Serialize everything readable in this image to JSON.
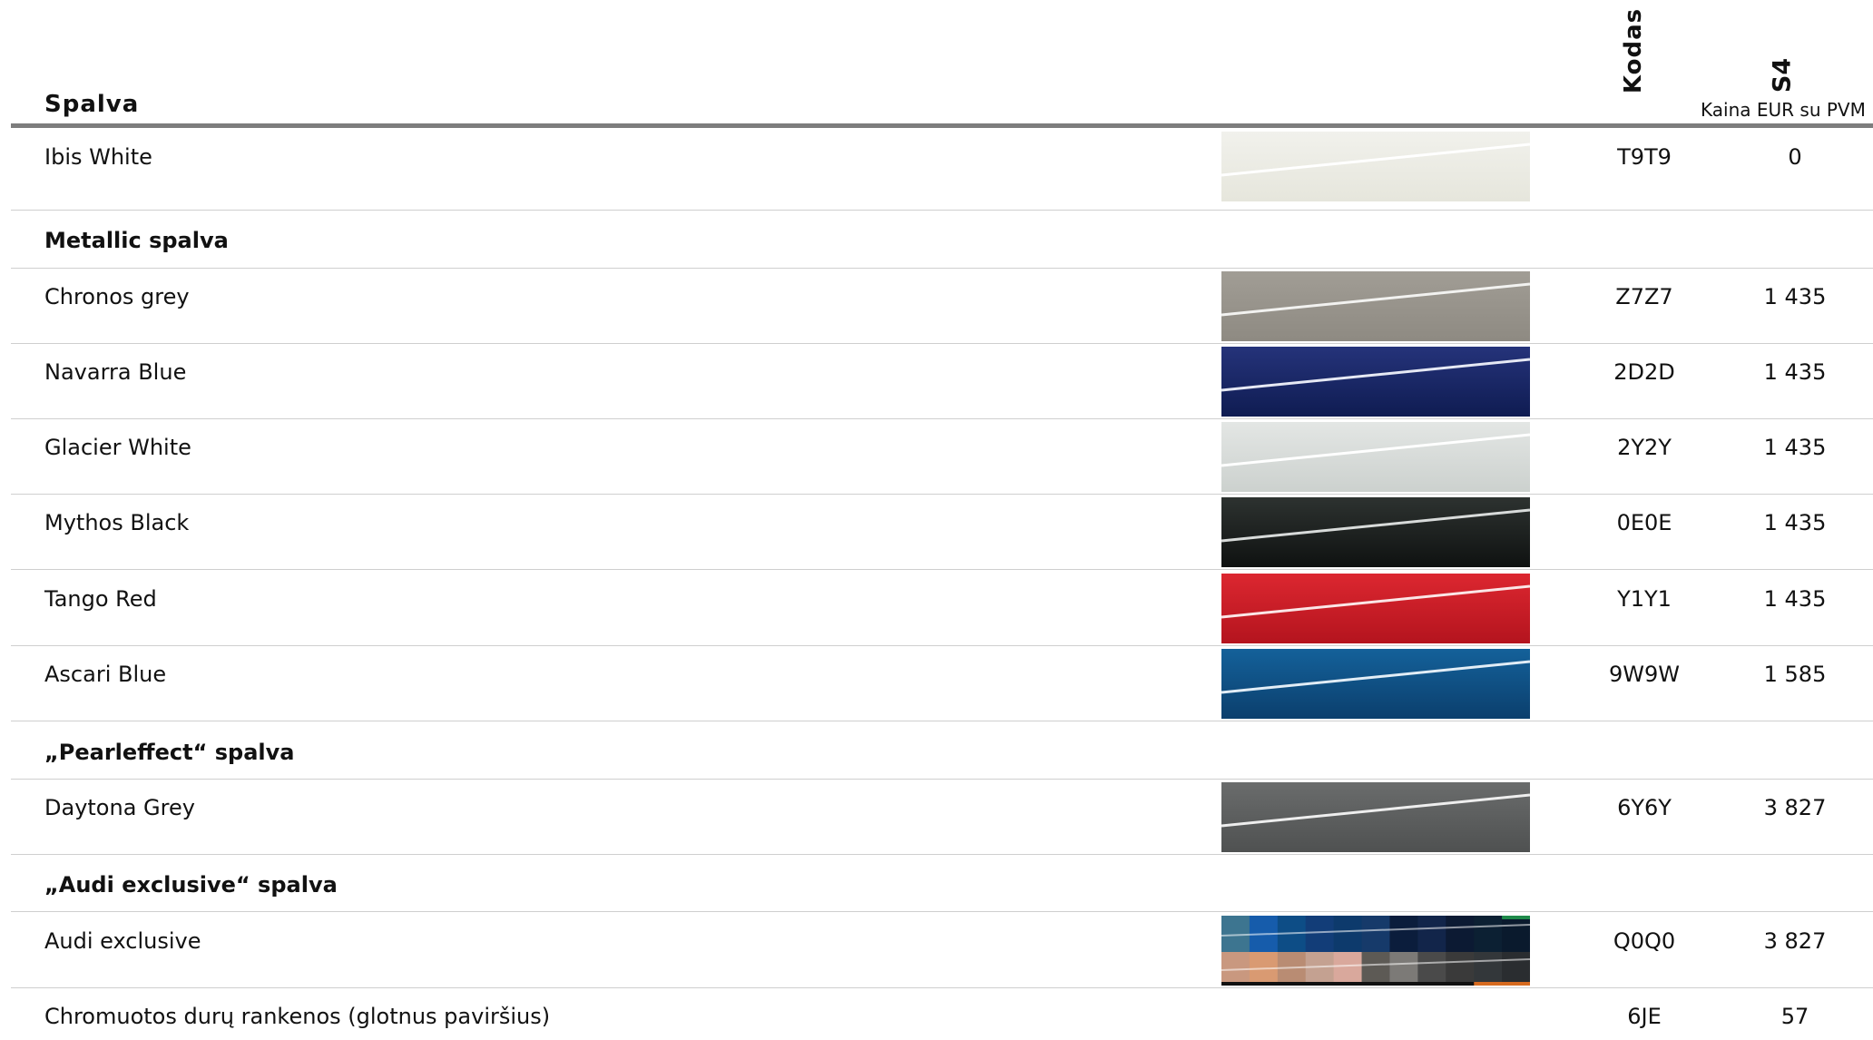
{
  "header": {
    "title": "Spalva",
    "code_col": "Kodas",
    "model_col": "S4",
    "price_caption": "Kaina EUR su PVM"
  },
  "rows": [
    {
      "kind": "item",
      "name": "Ibis White",
      "code": "T9T9",
      "price": "0",
      "swatch": {
        "top": "#f1f1ec",
        "bottom": "#e6e6dc",
        "line": "#ffffff"
      }
    },
    {
      "kind": "group",
      "name": "Metallic spalva"
    },
    {
      "kind": "item",
      "name": "Chronos grey",
      "code": "Z7Z7",
      "price": "1 435",
      "swatch": {
        "top": "#a19d95",
        "bottom": "#8e8a82",
        "line": "#f2f2f0"
      }
    },
    {
      "kind": "item",
      "name": "Navarra Blue",
      "code": "2D2D",
      "price": "1 435",
      "swatch": {
        "top": "#25337a",
        "bottom": "#0f1c52",
        "line": "#e6e9f4"
      }
    },
    {
      "kind": "item",
      "name": "Glacier White",
      "code": "2Y2Y",
      "price": "1 435",
      "swatch": {
        "top": "#e3e6e4",
        "bottom": "#ccd1ce",
        "line": "#ffffff"
      }
    },
    {
      "kind": "item",
      "name": "Mythos Black",
      "code": "0E0E",
      "price": "1 435",
      "swatch": {
        "top": "#2d3230",
        "bottom": "#0f1211",
        "line": "#d8dbda"
      }
    },
    {
      "kind": "item",
      "name": "Tango Red",
      "code": "Y1Y1",
      "price": "1 435",
      "swatch": {
        "top": "#dc2730",
        "bottom": "#b4141e",
        "line": "#fbe6e7"
      }
    },
    {
      "kind": "item",
      "name": "Ascari Blue",
      "code": "9W9W",
      "price": "1 585",
      "swatch": {
        "top": "#14619a",
        "bottom": "#0b3f6d",
        "line": "#e2edf6"
      }
    },
    {
      "kind": "group",
      "name": "„Pearleffect“ spalva"
    },
    {
      "kind": "item",
      "name": "Daytona Grey",
      "code": "6Y6Y",
      "price": "3 827",
      "swatch": {
        "top": "#6a6c6c",
        "bottom": "#4f5151",
        "line": "#eeeeee"
      }
    },
    {
      "kind": "group",
      "name": "„Audi exclusive“ spalva"
    },
    {
      "kind": "item",
      "name": "Audi exclusive",
      "code": "Q0Q0",
      "price": "3 827",
      "swatch": {
        "mosaic": true
      }
    },
    {
      "kind": "item",
      "name": "Chromuotos durų rankenos (glotnus paviršius)",
      "code": "6JE",
      "price": "57"
    }
  ],
  "mosaic_colors": {
    "top": [
      "#3d7590",
      "#165cab",
      "#0d4d86",
      "#123d78",
      "#0d3a6c",
      "#163a6a",
      "#0b1d3c",
      "#12254a",
      "#0c1a33",
      "#0c2033",
      "#0a1a2d"
    ],
    "bottom": [
      "#c9987f",
      "#d99a72",
      "#b98c73",
      "#c4a191",
      "#d9a89c",
      "#5d5a55",
      "#7c7a77",
      "#4a4a4a",
      "#3a3a3a",
      "#33373a",
      "#2a2d30"
    ],
    "accent_top": "#1f8a4a",
    "accent_bottom": "#d66a1f"
  }
}
